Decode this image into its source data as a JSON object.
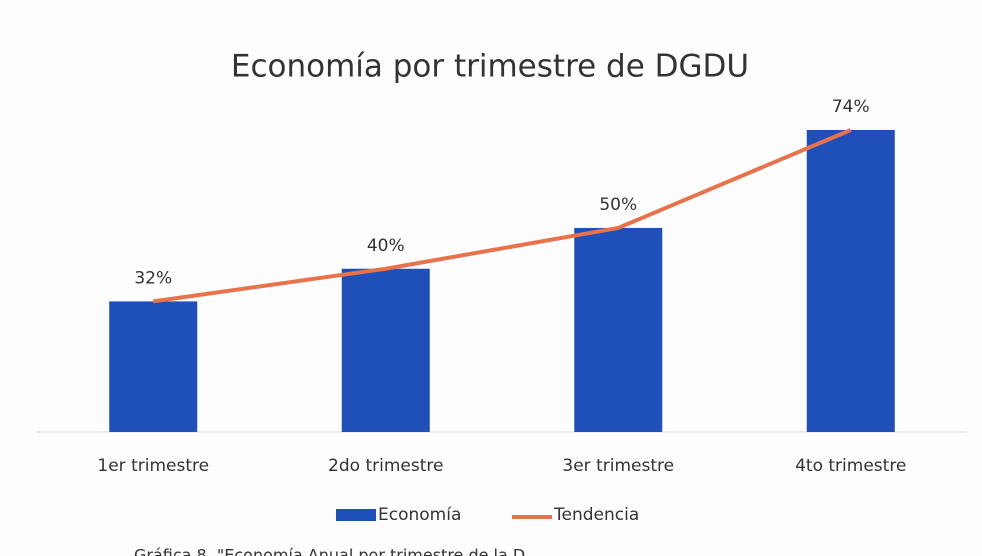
{
  "chart_data": {
    "type": "bar",
    "title": "Economía por trimestre de DGDU",
    "categories": [
      "1er trimestre",
      "2do trimestre",
      "3er trimestre",
      "4to trimestre"
    ],
    "series": [
      {
        "name": "Economía",
        "type": "bar",
        "color": "#1f4fb8",
        "values": [
          32,
          40,
          50,
          74
        ],
        "value_labels": [
          "32%",
          "40%",
          "50%",
          "74%"
        ]
      },
      {
        "name": "Tendencia",
        "type": "line",
        "color": "#e8734a",
        "values": [
          32,
          40,
          50,
          74
        ]
      }
    ],
    "caption": "Gráfica 8. \"Economía Anual por trimestre de la D"
  }
}
